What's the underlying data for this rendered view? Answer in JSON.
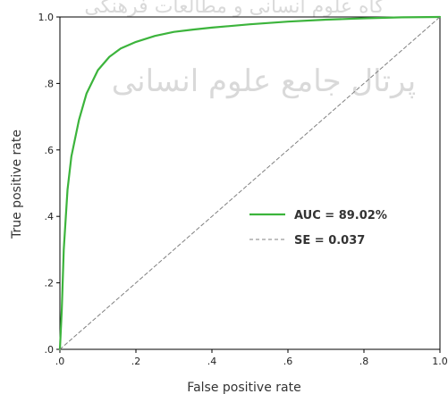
{
  "chart_data": {
    "type": "line",
    "title": "",
    "xlabel": "False positive rate",
    "ylabel": "True positive rate",
    "xlim": [
      0,
      1
    ],
    "ylim": [
      0,
      1
    ],
    "x_ticks": [
      0,
      0.2,
      0.4,
      0.6,
      0.8,
      1.0
    ],
    "x_tick_labels": [
      ".0",
      ".2",
      ".4",
      ".6",
      ".8",
      "1.0"
    ],
    "y_ticks": [
      0,
      0.2,
      0.4,
      0.6,
      0.8,
      1.0
    ],
    "y_tick_labels": [
      ".0",
      ".2",
      ".4",
      ".6",
      ".8",
      "1.0"
    ],
    "grid": false,
    "legend_position": "center-right",
    "series": [
      {
        "name": "AUC = 89.02%",
        "color": "#3cb43c",
        "style": "solid",
        "x": [
          0,
          0.005,
          0.01,
          0.02,
          0.03,
          0.05,
          0.07,
          0.1,
          0.13,
          0.16,
          0.2,
          0.25,
          0.3,
          0.35,
          0.4,
          0.5,
          0.6,
          0.7,
          0.8,
          0.9,
          1.0
        ],
        "y": [
          0,
          0.12,
          0.3,
          0.48,
          0.58,
          0.69,
          0.77,
          0.84,
          0.88,
          0.905,
          0.925,
          0.943,
          0.955,
          0.962,
          0.968,
          0.978,
          0.986,
          0.992,
          0.996,
          0.999,
          1.0
        ]
      },
      {
        "name": "SE = 0.037",
        "color": "#808080",
        "style": "dashed",
        "x": [
          0,
          1
        ],
        "y": [
          0,
          1
        ]
      }
    ],
    "watermark": {
      "line1": "گاه علوم انسانی و مطالعات فرهنگی",
      "line2": "پرتال جامع علوم انسانی"
    }
  }
}
